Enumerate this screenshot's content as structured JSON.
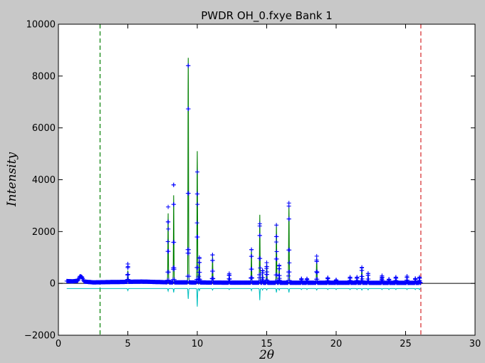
{
  "chart_data": {
    "type": "line",
    "title": "PWDR OH_0.fxye Bank 1",
    "xlabel": "2θ",
    "ylabel": "Intensity",
    "xlim": [
      0,
      30
    ],
    "ylim": [
      -2000,
      10000
    ],
    "xticks": [
      0,
      5,
      10,
      15,
      20,
      25,
      30
    ],
    "yticks": [
      -2000,
      0,
      2000,
      4000,
      6000,
      8000,
      10000
    ],
    "xtick_labels": [
      "0",
      "5",
      "10",
      "15",
      "20",
      "25",
      "30"
    ],
    "ytick_labels": [
      "−2000",
      "0",
      "2000",
      "4000",
      "6000",
      "8000",
      "10000"
    ],
    "grid": false,
    "legend": "none",
    "limits": {
      "lower": 3.0,
      "upper": 26.1
    },
    "data_range": [
      0.6,
      26.1
    ],
    "zero_line": 0,
    "difference_offset": -200,
    "colors": {
      "observed": "#0000ff",
      "calculated": "#008000",
      "background": "#ff0000",
      "difference": "#00bfbf",
      "lower_limit": "#008000",
      "upper_limit": "#d62728",
      "zero_line": "#000000"
    },
    "baseline": [
      {
        "x": 0.6,
        "y": 90
      },
      {
        "x": 1.0,
        "y": 80
      },
      {
        "x": 1.4,
        "y": 100
      },
      {
        "x": 1.55,
        "y": 280
      },
      {
        "x": 1.7,
        "y": 250
      },
      {
        "x": 1.85,
        "y": 70
      },
      {
        "x": 2.5,
        "y": 40
      },
      {
        "x": 5.0,
        "y": 60
      },
      {
        "x": 6.0,
        "y": 70
      },
      {
        "x": 8.0,
        "y": 40
      },
      {
        "x": 12.0,
        "y": 30
      },
      {
        "x": 18.0,
        "y": 25
      },
      {
        "x": 26.1,
        "y": 20
      }
    ],
    "peaks": [
      {
        "x": 5.0,
        "calc": 500,
        "obs": 750,
        "diff": -80
      },
      {
        "x": 7.9,
        "calc": 2700,
        "obs": 2950,
        "diff": -100
      },
      {
        "x": 8.3,
        "calc": 3400,
        "obs": 3800,
        "diff": -150
      },
      {
        "x": 9.35,
        "calc": 8700,
        "obs": 8400,
        "diff": -400
      },
      {
        "x": 10.0,
        "calc": 5100,
        "obs": 4300,
        "diff": -700
      },
      {
        "x": 10.15,
        "calc": 900,
        "obs": 1000,
        "diff": -80
      },
      {
        "x": 11.1,
        "calc": 1100,
        "obs": 1100,
        "diff": -60
      },
      {
        "x": 12.3,
        "calc": 400,
        "obs": 380,
        "diff": -40
      },
      {
        "x": 13.9,
        "calc": 1300,
        "obs": 1300,
        "diff": -80
      },
      {
        "x": 14.5,
        "calc": 2650,
        "obs": 2300,
        "diff": -450
      },
      {
        "x": 14.7,
        "calc": 500,
        "obs": 500,
        "diff": -60
      },
      {
        "x": 15.0,
        "calc": 800,
        "obs": 800,
        "diff": -60
      },
      {
        "x": 15.7,
        "calc": 2300,
        "obs": 2250,
        "diff": -150
      },
      {
        "x": 15.9,
        "calc": 700,
        "obs": 700,
        "diff": -60
      },
      {
        "x": 16.6,
        "calc": 3000,
        "obs": 3100,
        "diff": -150
      },
      {
        "x": 17.5,
        "calc": 200,
        "obs": 180,
        "diff": -40
      },
      {
        "x": 17.9,
        "calc": 200,
        "obs": 180,
        "diff": -40
      },
      {
        "x": 18.6,
        "calc": 1000,
        "obs": 1050,
        "diff": -60
      },
      {
        "x": 19.4,
        "calc": 250,
        "obs": 220,
        "diff": -40
      },
      {
        "x": 20.0,
        "calc": 150,
        "obs": 140,
        "diff": -40
      },
      {
        "x": 21.0,
        "calc": 250,
        "obs": 240,
        "diff": -40
      },
      {
        "x": 21.5,
        "calc": 250,
        "obs": 240,
        "diff": -40
      },
      {
        "x": 21.85,
        "calc": 600,
        "obs": 620,
        "diff": -60
      },
      {
        "x": 22.3,
        "calc": 400,
        "obs": 380,
        "diff": -50
      },
      {
        "x": 23.3,
        "calc": 300,
        "obs": 300,
        "diff": -40
      },
      {
        "x": 23.8,
        "calc": 180,
        "obs": 160,
        "diff": -40
      },
      {
        "x": 24.3,
        "calc": 250,
        "obs": 240,
        "diff": -40
      },
      {
        "x": 25.1,
        "calc": 300,
        "obs": 280,
        "diff": -40
      },
      {
        "x": 25.7,
        "calc": 200,
        "obs": 190,
        "diff": -40
      },
      {
        "x": 26.0,
        "calc": 250,
        "obs": 240,
        "diff": -40
      }
    ]
  }
}
